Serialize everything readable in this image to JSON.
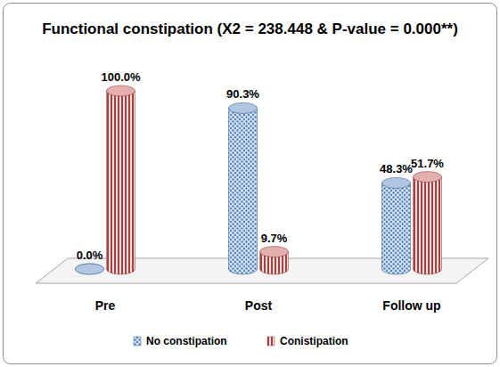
{
  "chart_data": {
    "type": "bar",
    "title": "Functional constipation (X2 = 238.448 & P-value = 0.000**)",
    "categories": [
      "Pre",
      "Post",
      "Follow up"
    ],
    "series": [
      {
        "name": "No constipation",
        "color": "#4f81bd",
        "values": [
          0.0,
          90.3,
          48.3
        ],
        "value_labels": [
          "0.0%",
          "90.3%",
          "48.3%"
        ]
      },
      {
        "name": "Conistipation",
        "color": "#c0504d",
        "values": [
          100.0,
          9.7,
          51.7
        ],
        "value_labels": [
          "100.0%",
          "9.7%",
          "51.7%"
        ]
      }
    ],
    "ylim": [
      0,
      100
    ],
    "data_labels": true,
    "tick_labels": "x",
    "legend": "bottom",
    "grid": false
  }
}
